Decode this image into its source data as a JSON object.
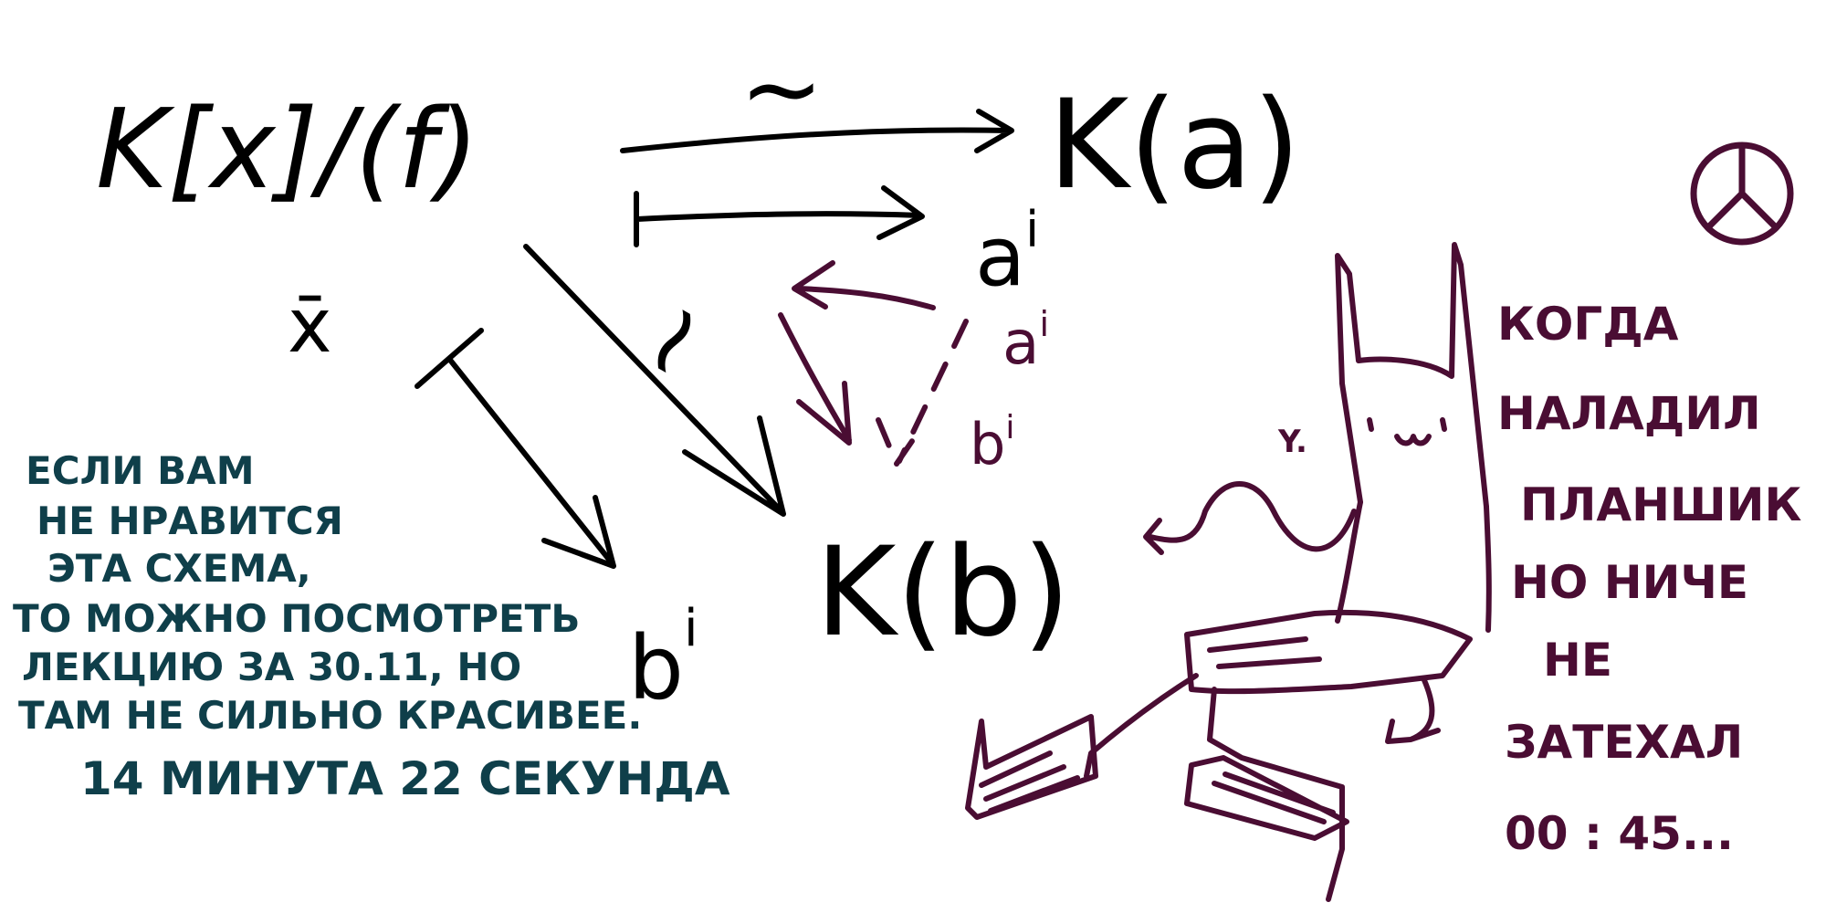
{
  "colors": {
    "black": "#000000",
    "plum": "#4a0d33",
    "teal": "#0f3f4a",
    "background": "#ffffff"
  },
  "diagram": {
    "quotient_ring": "K[x]/(f)",
    "x_bar": "x̄",
    "field_a": "K(a)",
    "field_b": "K(b)",
    "iso_top": "~",
    "iso_diag": "~",
    "a_power": "a",
    "a_exp": "i",
    "b_power": "b",
    "b_exp": "i",
    "a_small": "a",
    "a_small_exp": "i",
    "b_small": "b",
    "b_small_exp": "i"
  },
  "left_note": {
    "lines": [
      "ЕСЛИ ВАМ",
      "НЕ НРАВИТСЯ",
      "ЭТА СХЕМА,",
      "ТО МОЖНО ПОСМОТРЕТЬ",
      "ЛЕКЦИЮ ЗА 30.11, НО",
      "ТАМ НЕ СИЛЬНО КРАСИВЕЕ."
    ],
    "timer": "14 МИНУТА 22 СЕКУНДА"
  },
  "right_note": {
    "lines": [
      "КОГДА",
      "НАЛАДИЛ",
      "ПЛАНШИК",
      "НО НИЧЕ",
      "НЕ",
      "ЗАТЕХАЛ",
      "00 : 45..."
    ]
  },
  "cat": {
    "paw_label": "Y."
  },
  "icons": {
    "peace": "peace-icon"
  }
}
